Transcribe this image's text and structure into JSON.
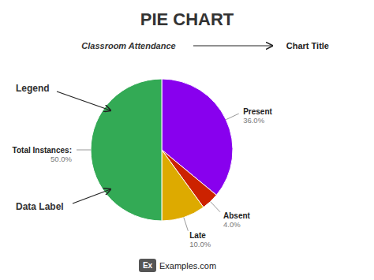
{
  "chart_data": {
    "type": "pie",
    "title": "PIE CHART",
    "subtitle": "Classroom Attendance",
    "categories": [
      "Present",
      "Absent",
      "Late",
      "Total Instances:"
    ],
    "values": [
      36.0,
      4.0,
      10.0,
      50.0
    ],
    "value_labels": [
      "36.0%",
      "4.0%",
      "10.0%",
      "50.0%"
    ],
    "data_labels": true,
    "colors": [
      "#8800EE",
      "#CC2200",
      "#DDAA00",
      "#33AA55"
    ],
    "annotations": [
      "Chart Title",
      "Legend",
      "Data Label",
      "Ex",
      "Examples.com"
    ]
  }
}
